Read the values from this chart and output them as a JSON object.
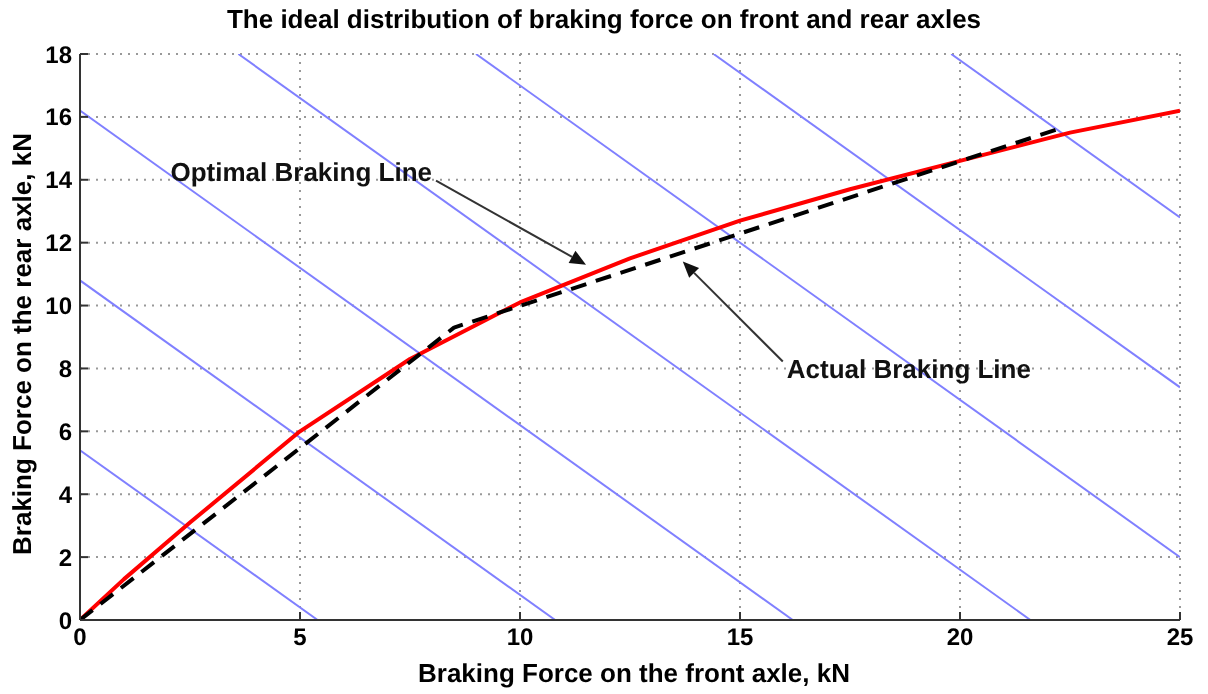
{
  "chart_data": {
    "type": "line",
    "title": "The ideal distribution of braking force on front and rear axles",
    "xlabel": "Braking Force on the front axle, kN",
    "ylabel": "Braking Force on the rear axle, kN",
    "xlim": [
      0,
      25
    ],
    "ylim": [
      0,
      18
    ],
    "xticks": [
      0,
      5,
      10,
      15,
      20,
      25
    ],
    "yticks": [
      0,
      2,
      4,
      6,
      8,
      10,
      12,
      14,
      16,
      18
    ],
    "grid": true,
    "marker": "none",
    "series": [
      {
        "color": "#8080ff",
        "line_style": "solid",
        "x": [
          0,
          5.4
        ],
        "values": [
          5.4,
          0
        ]
      },
      {
        "color": "#8080ff",
        "line_style": "solid",
        "x": [
          0,
          10.8
        ],
        "values": [
          10.8,
          0
        ]
      },
      {
        "color": "#8080ff",
        "line_style": "solid",
        "x": [
          0,
          16.2
        ],
        "values": [
          16.2,
          0
        ]
      },
      {
        "color": "#8080ff",
        "line_style": "solid",
        "x": [
          3.6,
          21.6
        ],
        "values": [
          18,
          0
        ]
      },
      {
        "color": "#8080ff",
        "line_style": "solid",
        "x": [
          9,
          25
        ],
        "values": [
          18,
          2
        ]
      },
      {
        "color": "#8080ff",
        "line_style": "solid",
        "x": [
          14.4,
          25
        ],
        "values": [
          18,
          7.4
        ]
      },
      {
        "color": "#8080ff",
        "line_style": "solid",
        "x": [
          19.8,
          25
        ],
        "values": [
          18,
          12.8
        ]
      },
      {
        "color": "#ff0000",
        "line_style": "solid",
        "x": [
          0,
          1,
          2.5,
          5,
          7.5,
          10,
          12.5,
          15,
          17.5,
          20,
          22.5,
          25
        ],
        "values": [
          0,
          1.3,
          3.1,
          6.0,
          8.3,
          10.1,
          11.5,
          12.7,
          13.7,
          14.6,
          15.5,
          16.2
        ]
      },
      {
        "color": "#000000",
        "line_style": "dashed",
        "x": [
          0,
          8.5,
          22.2
        ],
        "values": [
          0,
          9.3,
          15.6
        ]
      }
    ],
    "annotations": [
      {
        "text": "Optimal Braking Line",
        "x": 11.5,
        "y": 11.3
      },
      {
        "text": "Actual Braking Line",
        "x": 13.7,
        "y": 11.4
      }
    ]
  }
}
